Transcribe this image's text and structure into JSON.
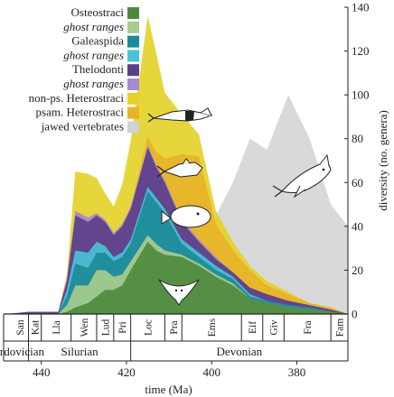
{
  "chart_data": {
    "type": "area",
    "title": "",
    "xlabel": "time (Ma)",
    "ylabel": "diversity (no. genera)",
    "xlim": [
      448,
      368
    ],
    "ylim": [
      0,
      140
    ],
    "x_ticks": [
      440,
      420,
      400,
      380
    ],
    "y_ticks": [
      0,
      20,
      40,
      60,
      80,
      100,
      120,
      140
    ],
    "legend_position": "top-left",
    "legend": [
      {
        "key": "osteostraci",
        "label": "Osteostraci",
        "italic": false,
        "color": "#4e8a3e"
      },
      {
        "key": "osteostraci_ghost",
        "label": "ghost ranges",
        "italic": true,
        "color": "#a8cc8c"
      },
      {
        "key": "galeaspida",
        "label": "Galeaspida",
        "italic": false,
        "color": "#1d8a99"
      },
      {
        "key": "galeaspida_ghost",
        "label": "ghost ranges",
        "italic": true,
        "color": "#48c3d6"
      },
      {
        "key": "thelodonti",
        "label": "Thelodonti",
        "italic": false,
        "color": "#5c3f88"
      },
      {
        "key": "thelodonti_ghost",
        "label": "ghost ranges",
        "italic": true,
        "color": "#a38cd0"
      },
      {
        "key": "nonps_heterostraci",
        "label": "non-ps. Heterostraci",
        "italic": false,
        "color": "#e4d22a"
      },
      {
        "key": "psam_heterostraci",
        "label": "psam. Heterostraci",
        "italic": false,
        "color": "#e8b32a"
      },
      {
        "key": "jawed",
        "label": "jawed vertebrates",
        "italic": false,
        "color": "#d2d2d2"
      }
    ],
    "x": [
      448,
      443,
      438,
      436,
      434,
      432,
      429,
      427,
      425,
      423,
      421,
      419,
      415,
      413,
      411,
      407,
      403,
      399,
      395,
      391,
      387,
      382,
      377,
      372,
      368
    ],
    "series": [
      {
        "name": "Osteostraci",
        "values": [
          0,
          0,
          0,
          0,
          1,
          3,
          5,
          8,
          11,
          11,
          13,
          20,
          33,
          29,
          27,
          26,
          22,
          17,
          13,
          7,
          5,
          3,
          2,
          1,
          0
        ]
      },
      {
        "name": "Osteostraci ghost ranges",
        "values": [
          0,
          0,
          0,
          0,
          3,
          10,
          8,
          12,
          9,
          6,
          5,
          4,
          3,
          3,
          2,
          1,
          1,
          1,
          1,
          0,
          0,
          0,
          0,
          0,
          0
        ]
      },
      {
        "name": "Galeaspida",
        "values": [
          0,
          0,
          0,
          0,
          4,
          10,
          8,
          8,
          8,
          7,
          8,
          8,
          20,
          19,
          17,
          5,
          3,
          2,
          2,
          1,
          1,
          1,
          1,
          0,
          0
        ]
      },
      {
        "name": "Galeaspida ghost ranges",
        "values": [
          0,
          0,
          0,
          0,
          3,
          6,
          7,
          5,
          3,
          2,
          2,
          2,
          2,
          2,
          2,
          2,
          2,
          2,
          1,
          1,
          0,
          0,
          0,
          0,
          0
        ]
      },
      {
        "name": "Thelodonti",
        "values": [
          0,
          1,
          1,
          1,
          4,
          16,
          14,
          12,
          11,
          10,
          12,
          14,
          18,
          14,
          12,
          8,
          5,
          3,
          2,
          3,
          3,
          2,
          1,
          1,
          0
        ]
      },
      {
        "name": "Thelodonti ghost ranges",
        "values": [
          0,
          0,
          0,
          0,
          1,
          2,
          2,
          1,
          1,
          1,
          1,
          1,
          1,
          1,
          1,
          1,
          1,
          1,
          0,
          0,
          0,
          0,
          0,
          0,
          0
        ]
      },
      {
        "name": "non-ps. Heterostraci",
        "values": [
          0,
          0,
          0,
          0,
          2,
          18,
          20,
          16,
          12,
          12,
          18,
          30,
          55,
          45,
          30,
          18,
          10,
          6,
          4,
          2,
          2,
          1,
          0,
          0,
          0
        ]
      },
      {
        "name": "psam. Heterostraci",
        "values": [
          0,
          0,
          0,
          0,
          0,
          0,
          0,
          0,
          0,
          0,
          0,
          0,
          4,
          6,
          10,
          30,
          38,
          15,
          10,
          8,
          4,
          3,
          1,
          1,
          0
        ]
      },
      {
        "name": "jawed vertebrates",
        "values": [
          0,
          0,
          0,
          0,
          0,
          0,
          0,
          0,
          0,
          0,
          0,
          0,
          0,
          0,
          2,
          5,
          12,
          45,
          60,
          80,
          75,
          100,
          80,
          50,
          40
        ]
      }
    ],
    "stages": [
      {
        "label": "San",
        "start": 447,
        "end": 443
      },
      {
        "label": "Kat",
        "start": 443,
        "end": 440
      },
      {
        "label": "Lla",
        "start": 440,
        "end": 433
      },
      {
        "label": "Wen",
        "start": 433,
        "end": 427
      },
      {
        "label": "Lud",
        "start": 427,
        "end": 423
      },
      {
        "label": "Pri",
        "start": 423,
        "end": 419
      },
      {
        "label": "Loc",
        "start": 419,
        "end": 411
      },
      {
        "label": "Pra",
        "start": 411,
        "end": 407
      },
      {
        "label": "Ems",
        "start": 407,
        "end": 393
      },
      {
        "label": "Eif",
        "start": 393,
        "end": 388
      },
      {
        "label": "Giv",
        "start": 388,
        "end": 383
      },
      {
        "label": "Fra",
        "start": 383,
        "end": 372
      },
      {
        "label": "Fam",
        "start": 372,
        "end": 366
      }
    ],
    "periods": [
      {
        "label": "Ordovician",
        "start": 448,
        "end": 443
      },
      {
        "label": "Silurian",
        "start": 443,
        "end": 419
      },
      {
        "label": "Devonian",
        "start": 419,
        "end": 366
      }
    ],
    "silhouettes": [
      "jawless-fish-silhouette-1",
      "jawless-fish-silhouette-2",
      "jawless-fish-silhouette-3",
      "jawless-fish-silhouette-4",
      "jawed-fish-silhouette"
    ]
  }
}
